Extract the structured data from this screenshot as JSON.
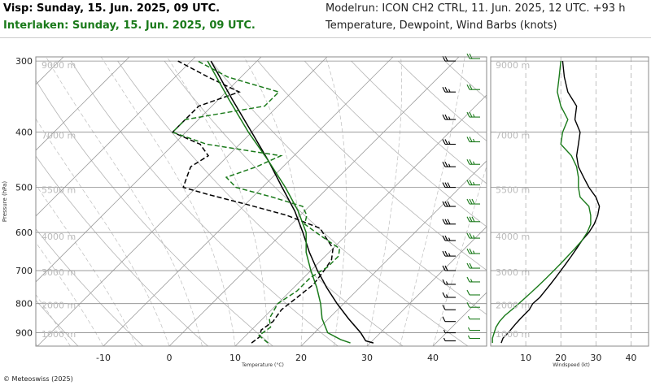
{
  "header": {
    "title_line1": "Visp: Sunday, 15. Jun. 2025, 09 UTC.",
    "title_line2": "Interlaken: Sunday, 15. Jun. 2025, 09 UTC.",
    "model_line": "Modelrun: ICON CH2 CTRL, 11. Jun. 2025, 12 UTC. +93 h",
    "params_line": "Temperature, Dewpoint, Wind Barbs (knots)"
  },
  "footer": {
    "copyright": "© Meteoswiss (2025)"
  },
  "colors": {
    "visp": "#000000",
    "interlaken": "#1a7a1a",
    "grid": "#aaaaaa"
  },
  "chart_data": [
    {
      "type": "line",
      "subtype": "skew-t",
      "ylabel": "Pressure (hPa)",
      "xlabel": "Temperature (°C)",
      "pressure_ticks": [
        "300",
        "400",
        "500",
        "600",
        "700",
        "800",
        "900"
      ],
      "pressure_tick_values": [
        300,
        400,
        500,
        600,
        700,
        800,
        900
      ],
      "temp_ticks": [
        "-10",
        "0",
        "10",
        "20",
        "30",
        "40"
      ],
      "temp_tick_values": [
        -10,
        0,
        10,
        20,
        30,
        40
      ],
      "height_labels": [
        "9000 m",
        "7000 m",
        "5500 m",
        "4000 m",
        "3000 m",
        "2000 m",
        "1000 m"
      ],
      "height_label_pressures": [
        305,
        405,
        505,
        610,
        705,
        805,
        905
      ],
      "ylim": [
        950,
        295
      ],
      "xlim_at_bottom": [
        -25,
        47
      ],
      "series": [
        {
          "location": "Visp",
          "variable": "temperature",
          "color": "#000000",
          "style": "solid",
          "p": [
            938,
            930,
            900,
            850,
            800,
            750,
            700,
            650,
            600,
            550,
            500,
            450,
            400,
            350,
            300
          ],
          "t": [
            30.5,
            29,
            27,
            23,
            19,
            15,
            11,
            7,
            3,
            -1.5,
            -7,
            -13,
            -20,
            -28,
            -37
          ]
        },
        {
          "location": "Visp",
          "variable": "dewpoint",
          "color": "#000000",
          "style": "dashed",
          "p": [
            938,
            915,
            890,
            860,
            820,
            780,
            740,
            700,
            670,
            640,
            610,
            590,
            560,
            535,
            515,
            500,
            480,
            460,
            440,
            420,
            400,
            380,
            360,
            340,
            320,
            300
          ],
          "t": [
            12,
            12.3,
            11.5,
            12,
            11.5,
            12,
            12.5,
            12,
            11.5,
            10,
            7,
            5,
            -2,
            -10,
            -17,
            -22,
            -23,
            -24,
            -23,
            -26,
            -32,
            -32,
            -32,
            -28,
            -35,
            -42
          ]
        },
        {
          "location": "Interlaken",
          "variable": "temperature",
          "color": "#1a7a1a",
          "style": "solid",
          "p": [
            938,
            925,
            900,
            850,
            800,
            750,
            700,
            650,
            600,
            550,
            500,
            450,
            400,
            350,
            300
          ],
          "t": [
            27,
            25,
            22,
            19,
            16.5,
            13.5,
            10,
            6.5,
            3.5,
            -1,
            -6.5,
            -13,
            -20.5,
            -28.5,
            -37.5
          ]
        },
        {
          "location": "Interlaken",
          "variable": "dewpoint",
          "color": "#1a7a1a",
          "style": "dashed",
          "p": [
            938,
            910,
            880,
            850,
            800,
            760,
            720,
            690,
            660,
            640,
            620,
            600,
            580,
            560,
            540,
            520,
            500,
            480,
            460,
            440,
            420,
            400,
            380,
            360,
            340,
            320,
            300
          ],
          "t": [
            14.5,
            12,
            12.5,
            11,
            10,
            11,
            11,
            12,
            12,
            11,
            8,
            5,
            2,
            1,
            -1,
            -7,
            -14,
            -17,
            -14,
            -12,
            -25,
            -32,
            -32,
            -22,
            -22,
            -32,
            -39
          ]
        }
      ]
    },
    {
      "type": "line",
      "subtype": "wind-profile",
      "xlabel": "Windspeed (kt)",
      "xticks": [
        "10",
        "20",
        "30",
        "40"
      ],
      "xtick_values": [
        10,
        20,
        30,
        40
      ],
      "xlim": [
        0,
        45
      ],
      "series": [
        {
          "location": "Visp",
          "color": "#000000",
          "p": [
            938,
            920,
            900,
            870,
            850,
            820,
            800,
            780,
            760,
            740,
            720,
            700,
            680,
            660,
            640,
            620,
            600,
            580,
            560,
            540,
            520,
            500,
            480,
            460,
            440,
            420,
            400,
            380,
            360,
            340,
            320,
            300
          ],
          "ws": [
            3,
            3.5,
            5,
            7,
            8.5,
            11,
            12,
            14,
            15.5,
            17,
            18.5,
            20,
            21.5,
            23,
            24.5,
            26,
            28,
            29.5,
            30.5,
            31,
            30,
            28,
            26.5,
            25,
            24.5,
            25,
            25.5,
            24,
            24.5,
            22,
            21,
            20.5
          ]
        },
        {
          "location": "Interlaken",
          "color": "#1a7a1a",
          "p": [
            938,
            920,
            900,
            880,
            860,
            840,
            820,
            800,
            780,
            760,
            740,
            720,
            700,
            680,
            660,
            640,
            620,
            600,
            580,
            560,
            540,
            520,
            500,
            480,
            460,
            440,
            420,
            400,
            380,
            360,
            340,
            320,
            300
          ],
          "ws": [
            0.5,
            0.5,
            1,
            1.5,
            2.5,
            4,
            6,
            8,
            10,
            12,
            14,
            16,
            18,
            20,
            22,
            24,
            26,
            27.5,
            28.5,
            28.5,
            28,
            25.5,
            25,
            25,
            24.5,
            23,
            20,
            20.5,
            22,
            20,
            19,
            19.5,
            20
          ]
        }
      ]
    },
    {
      "type": "wind-barbs",
      "p": [
        300,
        340,
        380,
        420,
        460,
        500,
        540,
        580,
        620,
        660,
        700,
        740,
        780,
        820,
        860,
        900,
        930
      ],
      "visp_speed_kt": [
        20,
        25,
        25,
        25,
        25,
        30,
        30,
        30,
        25,
        25,
        20,
        15,
        15,
        10,
        10,
        5,
        5
      ],
      "interlaken_speed_kt": [
        20,
        20,
        25,
        25,
        25,
        25,
        30,
        30,
        25,
        25,
        20,
        15,
        10,
        10,
        5,
        5,
        5
      ]
    }
  ]
}
